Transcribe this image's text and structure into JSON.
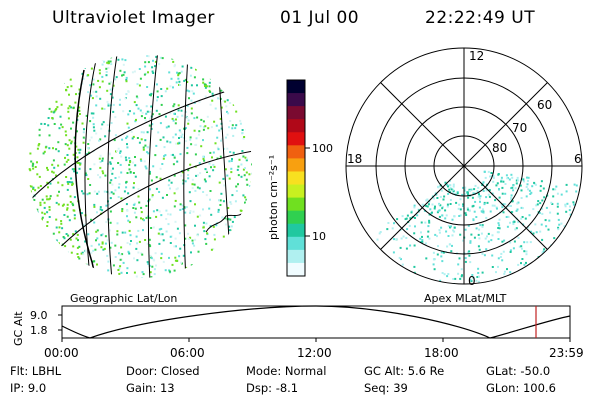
{
  "header": {
    "instrument": "Ultraviolet Imager",
    "date": "01 Jul 00",
    "time": "22:22:49 UT"
  },
  "colorbar": {
    "label": "photon cm⁻²s⁻¹",
    "ticks": [
      "100",
      "10"
    ],
    "colors": [
      "#000030",
      "#3a0a4a",
      "#7a0a30",
      "#b00818",
      "#e01010",
      "#f06010",
      "#f8a010",
      "#f8e020",
      "#c8f020",
      "#70e020",
      "#30d050",
      "#20c8a0",
      "#60e0d8",
      "#b0f0f0",
      "#f0fcff"
    ]
  },
  "panels": {
    "left_caption": "Geographic Lat/Lon",
    "right_caption": "Apex MLat/MLT",
    "polar_labels": {
      "top": "12",
      "bottom": "0",
      "left": "18",
      "right": "6",
      "rings": [
        "60",
        "70",
        "80"
      ]
    }
  },
  "altitude_plot": {
    "ylabel": "GC Alt",
    "yticks": [
      "9.0",
      "1.8"
    ],
    "xticks": [
      "00:00",
      "06:00",
      "12:00",
      "18:00",
      "23:59"
    ],
    "marker_color": "#c02020"
  },
  "info": {
    "row1": [
      {
        "label": "Flt:",
        "value": "LBHL"
      },
      {
        "label": "Door:",
        "value": "Closed"
      },
      {
        "label": "Mode:",
        "value": "Normal"
      },
      {
        "label": "GC Alt:",
        "value": "5.6 Re"
      },
      {
        "label": "GLat:",
        "value": "-50.0"
      }
    ],
    "row2": [
      {
        "label": "IP:",
        "value": "9.0"
      },
      {
        "label": "Gain:",
        "value": "13"
      },
      {
        "label": "Dsp:",
        "value": "-8.1"
      },
      {
        "label": "Seq:",
        "value": "39"
      },
      {
        "label": "GLon:",
        "value": "100.6"
      }
    ]
  }
}
